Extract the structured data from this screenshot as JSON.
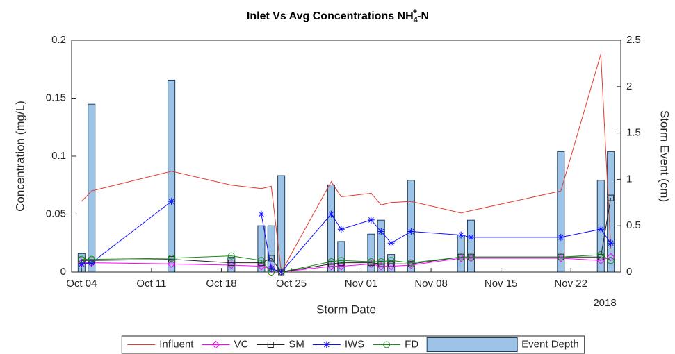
{
  "chart_data": {
    "type": "line",
    "title_parts": [
      "Inlet Vs Avg Concentrations NH",
      "4",
      "+",
      "-N"
    ],
    "xlabel": "Storm Date",
    "ylabel": "Concentration (mg/L)",
    "y2label": "Storm Event (cm)",
    "x_year_label": "2018",
    "x": [
      "2018-10-04",
      "2018-10-05",
      "2018-10-13",
      "2018-10-19",
      "2018-10-22",
      "2018-10-23",
      "2018-10-24",
      "2018-10-29",
      "2018-10-30",
      "2018-11-02",
      "2018-11-03",
      "2018-11-04",
      "2018-11-06",
      "2018-11-11",
      "2018-11-12",
      "2018-11-21",
      "2018-11-25",
      "2018-11-26"
    ],
    "xlim": [
      "2018-10-03",
      "2018-11-27"
    ],
    "xticks": [
      {
        "value": "2018-10-04",
        "label": "Oct 04"
      },
      {
        "value": "2018-10-11",
        "label": "Oct 11"
      },
      {
        "value": "2018-10-18",
        "label": "Oct 18"
      },
      {
        "value": "2018-10-25",
        "label": "Oct 25"
      },
      {
        "value": "2018-11-01",
        "label": "Nov 01"
      },
      {
        "value": "2018-11-08",
        "label": "Nov 08"
      },
      {
        "value": "2018-11-15",
        "label": "Nov 15"
      },
      {
        "value": "2018-11-22",
        "label": "Nov 22"
      }
    ],
    "ylim": [
      0,
      0.2
    ],
    "yticks": [
      0,
      0.05,
      0.1,
      0.15,
      0.2
    ],
    "y2lim": [
      0,
      2.5
    ],
    "y2ticks": [
      0,
      0.5,
      1,
      1.5,
      2,
      2.5
    ],
    "legend": "bottom",
    "series": [
      {
        "name": "Influent",
        "type": "line",
        "marker": "none",
        "color": "#e03c31",
        "values": [
          0.061,
          0.07,
          0.087,
          0.075,
          0.072,
          0.074,
          0.0,
          0.078,
          0.065,
          0.068,
          0.058,
          0.06,
          0.061,
          0.051,
          0.053,
          0.07,
          0.188,
          0.02
        ]
      },
      {
        "name": "VC",
        "type": "line",
        "marker": "diamond",
        "color": "#ff00ff",
        "values": [
          0.008,
          0.008,
          0.007,
          0.006,
          0.005,
          0.003,
          0.0,
          0.005,
          0.005,
          0.007,
          0.005,
          0.005,
          0.006,
          0.012,
          0.012,
          0.012,
          0.01,
          0.013
        ]
      },
      {
        "name": "SM",
        "type": "line",
        "marker": "square",
        "color": "#222222",
        "values": [
          0.01,
          0.01,
          0.011,
          0.008,
          0.008,
          0.012,
          0.0,
          0.007,
          0.008,
          0.008,
          0.007,
          0.007,
          0.007,
          0.013,
          0.013,
          0.013,
          0.013,
          0.064
        ]
      },
      {
        "name": "IWS",
        "type": "line",
        "marker": "asterisk",
        "color": "#1010ff",
        "values": [
          0.007,
          0.008,
          0.061,
          null,
          0.05,
          0.003,
          0.0,
          0.05,
          0.037,
          0.045,
          0.035,
          0.025,
          0.035,
          0.032,
          0.03,
          0.03,
          0.037,
          0.025
        ]
      },
      {
        "name": "FD",
        "type": "line",
        "marker": "circle",
        "color": "#1a8a1a",
        "values": [
          0.011,
          0.011,
          0.012,
          0.014,
          0.01,
          0.0,
          0.0,
          0.009,
          0.01,
          0.009,
          0.009,
          0.01,
          0.008,
          0.013,
          0.013,
          0.013,
          0.015,
          0.01
        ]
      },
      {
        "name": "Event Depth",
        "type": "bar",
        "axis": "y2",
        "color": "#9dc3e6",
        "values": [
          0.2,
          1.81,
          2.07,
          0.16,
          0.5,
          0.5,
          1.04,
          0.94,
          0.33,
          0.41,
          0.56,
          0.19,
          0.99,
          0.4,
          0.56,
          1.3,
          0.99,
          1.3
        ]
      }
    ]
  }
}
